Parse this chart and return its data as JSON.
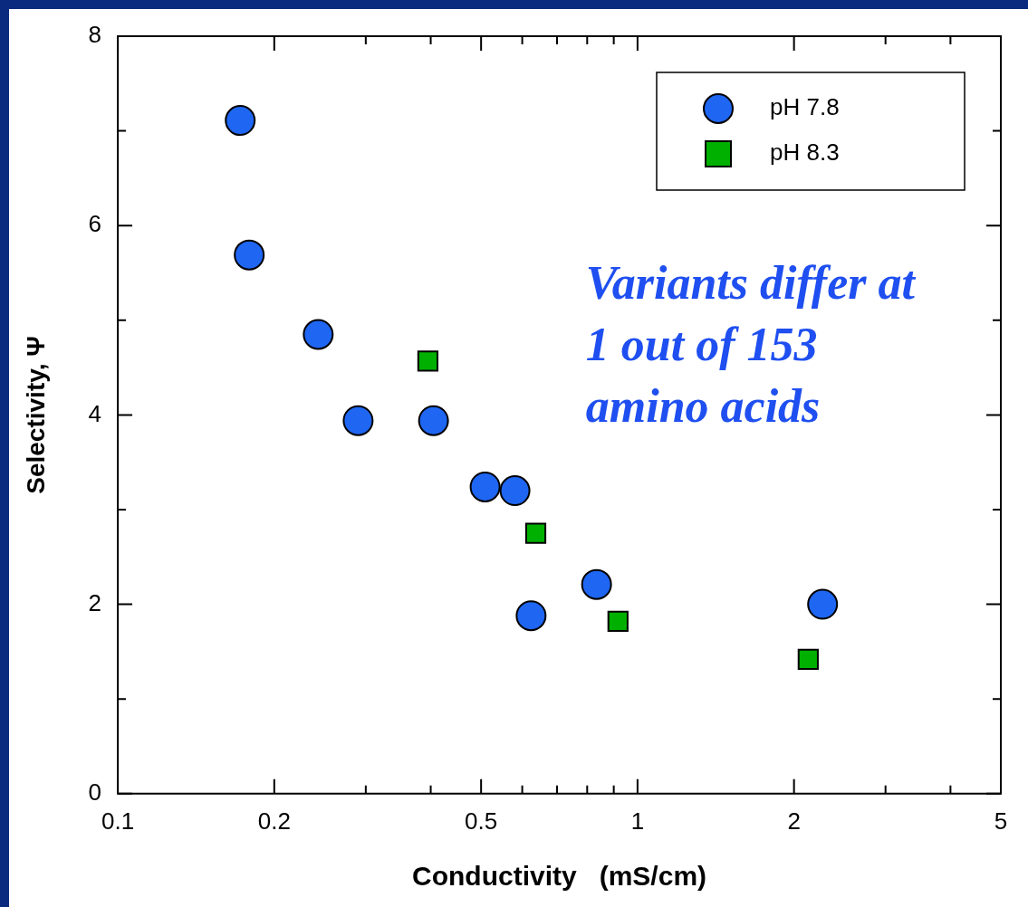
{
  "chart_data": {
    "type": "scatter",
    "xlabel": "Conductivity   (mS/cm)",
    "ylabel": "Selectivity, Ψ",
    "log": "x",
    "xlim": [
      0.1,
      5
    ],
    "ylim": [
      0,
      8
    ],
    "xticks": [
      0.1,
      0.2,
      {
        "value": 0.3,
        "label": null
      },
      {
        "value": 0.4,
        "label": null
      },
      0.5,
      {
        "value": 0.6,
        "label": null
      },
      {
        "value": 0.7,
        "label": null
      },
      {
        "value": 0.8,
        "label": null
      },
      {
        "value": 0.9,
        "label": null
      },
      1,
      2,
      {
        "value": 3,
        "label": null
      },
      {
        "value": 4,
        "label": null
      },
      5
    ],
    "yticks": [
      0,
      {
        "value": 1,
        "label": null
      },
      2,
      {
        "value": 3,
        "label": null
      },
      4,
      {
        "value": 5,
        "label": null
      },
      6,
      {
        "value": 7,
        "label": null
      },
      8
    ],
    "grid": false,
    "legend": "top right",
    "annotations": [
      "Variants differ at 1 out of 153 amino acids"
    ],
    "series": [
      {
        "name": "pH 7.8",
        "color": "#1f66f2",
        "marker": "circle",
        "x": [
          0.172,
          0.179,
          0.243,
          0.29,
          0.405,
          0.509,
          0.581,
          0.624,
          0.834,
          2.27
        ],
        "values": [
          7.11,
          5.69,
          4.85,
          3.94,
          3.94,
          3.24,
          3.2,
          1.88,
          2.21,
          2.0
        ]
      },
      {
        "name": "pH 8.3",
        "color": "#00b000",
        "marker": "square",
        "x": [
          0.395,
          0.637,
          0.917,
          2.13
        ],
        "values": [
          4.57,
          2.75,
          1.82,
          1.42
        ]
      }
    ]
  }
}
